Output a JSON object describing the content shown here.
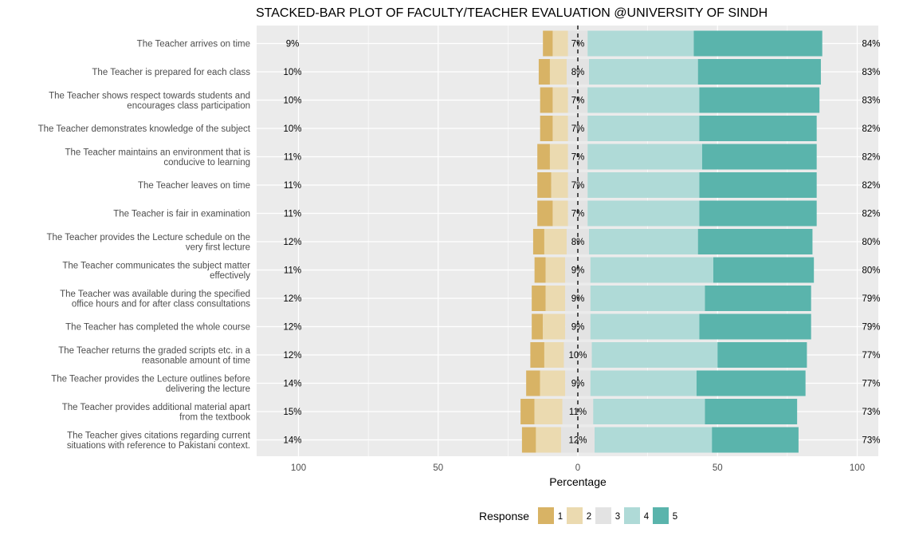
{
  "chart_data": {
    "type": "bar",
    "orientation": "horizontal",
    "stacking": "diverging",
    "title": "STACKED-BAR PLOT OF FACULTY/TEACHER EVALUATION @UNIVERSITY OF SINDH",
    "xlabel": "Percentage",
    "ylabel": "",
    "xlim": [
      -100,
      100
    ],
    "x_ticks": [
      -100,
      -50,
      0,
      50,
      100
    ],
    "x_tick_labels": [
      "100",
      "50",
      "0",
      "50",
      "100"
    ],
    "grid": true,
    "legend": {
      "title": "Response",
      "position": "bottom",
      "entries": [
        "1",
        "2",
        "3",
        "4",
        "5"
      ]
    },
    "colors": {
      "1": "#d8b365",
      "2": "#ebdab0",
      "3": "#e3e3e3",
      "4": "#afdad7",
      "5": "#5ab4ac",
      "panel": "#ebebeb",
      "grid": "#ffffff",
      "zero_line": "#000000"
    },
    "categories": [
      "The Teacher arrives on time",
      "The Teacher is prepared for each class",
      "The Teacher shows respect towards students and encourages class participation",
      "The Teacher demonstrates knowledge of the subject",
      "The Teacher maintains an environment that is conducive to learning",
      "The Teacher leaves on time",
      "The Teacher is fair in examination",
      "The Teacher provides the Lecture schedule on the very first lecture",
      "The Teacher communicates the subject matter effectively",
      "The Teacher was available during the specified office hours and for after class consultations",
      "The Teacher has completed the whole course",
      "The Teacher returns the graded scripts etc. in a reasonable amount of time",
      "The Teacher provides the Lecture outlines before delivering the lecture",
      "The Teacher provides additional material apart from the textbook",
      "The Teacher gives citations regarding current situations with reference to Pakistani context."
    ],
    "category_lines": [
      [
        "The Teacher arrives on time"
      ],
      [
        "The Teacher is prepared for each class"
      ],
      [
        "The Teacher shows respect towards students and",
        "encourages class participation"
      ],
      [
        "The Teacher demonstrates knowledge of the subject"
      ],
      [
        "The Teacher maintains an environment that is",
        "conducive to learning"
      ],
      [
        "The Teacher leaves on time"
      ],
      [
        "The Teacher is fair in examination"
      ],
      [
        "The Teacher provides the Lecture schedule on the",
        "very first lecture"
      ],
      [
        "The Teacher communicates the subject matter",
        "effectively"
      ],
      [
        "The Teacher was available during the specified",
        "office hours and for after class consultations"
      ],
      [
        "The Teacher has completed the whole course"
      ],
      [
        "The Teacher returns the graded scripts etc. in a",
        "reasonable amount of time"
      ],
      [
        "The Teacher provides the Lecture outlines before",
        "delivering the lecture"
      ],
      [
        "The Teacher provides additional material apart",
        "from the textbook"
      ],
      [
        "The Teacher gives citations regarding current",
        "situations with reference to Pakistani context."
      ]
    ],
    "series": [
      {
        "name": "1",
        "values": [
          3.5,
          4.0,
          4.5,
          4.5,
          4.5,
          5.0,
          5.5,
          4.0,
          4.0,
          5.0,
          4.0,
          5.0,
          5.0,
          5.0,
          5.0
        ]
      },
      {
        "name": "2",
        "values": [
          5.5,
          6.0,
          5.5,
          5.5,
          6.5,
          6.0,
          5.5,
          8.0,
          7.0,
          7.0,
          8.0,
          7.0,
          9.0,
          10.0,
          9.0
        ]
      },
      {
        "name": "3",
        "values": [
          7,
          8,
          7,
          7,
          7,
          7,
          7,
          8,
          9,
          9,
          9,
          10,
          9,
          11,
          12
        ]
      },
      {
        "name": "4",
        "values": [
          38.0,
          39.0,
          40.0,
          40.0,
          41.0,
          40.0,
          40.0,
          39.0,
          44.0,
          41.0,
          39.0,
          45.0,
          38.0,
          40.0,
          42.0
        ]
      },
      {
        "name": "5",
        "values": [
          46.0,
          44.0,
          43.0,
          42.0,
          41.0,
          42.0,
          42.0,
          41.0,
          36.0,
          38.0,
          40.0,
          32.0,
          39.0,
          33.0,
          31.0
        ]
      }
    ],
    "data_labels": {
      "low": [
        "9%",
        "10%",
        "10%",
        "10%",
        "11%",
        "11%",
        "11%",
        "12%",
        "11%",
        "12%",
        "12%",
        "12%",
        "14%",
        "15%",
        "14%"
      ],
      "neutral": [
        "7%",
        "8%",
        "7%",
        "7%",
        "7%",
        "7%",
        "7%",
        "8%",
        "9%",
        "9%",
        "9%",
        "10%",
        "9%",
        "11%",
        "12%"
      ],
      "high": [
        "84%",
        "83%",
        "83%",
        "82%",
        "82%",
        "82%",
        "82%",
        "80%",
        "80%",
        "79%",
        "79%",
        "77%",
        "77%",
        "73%",
        "73%"
      ]
    }
  }
}
